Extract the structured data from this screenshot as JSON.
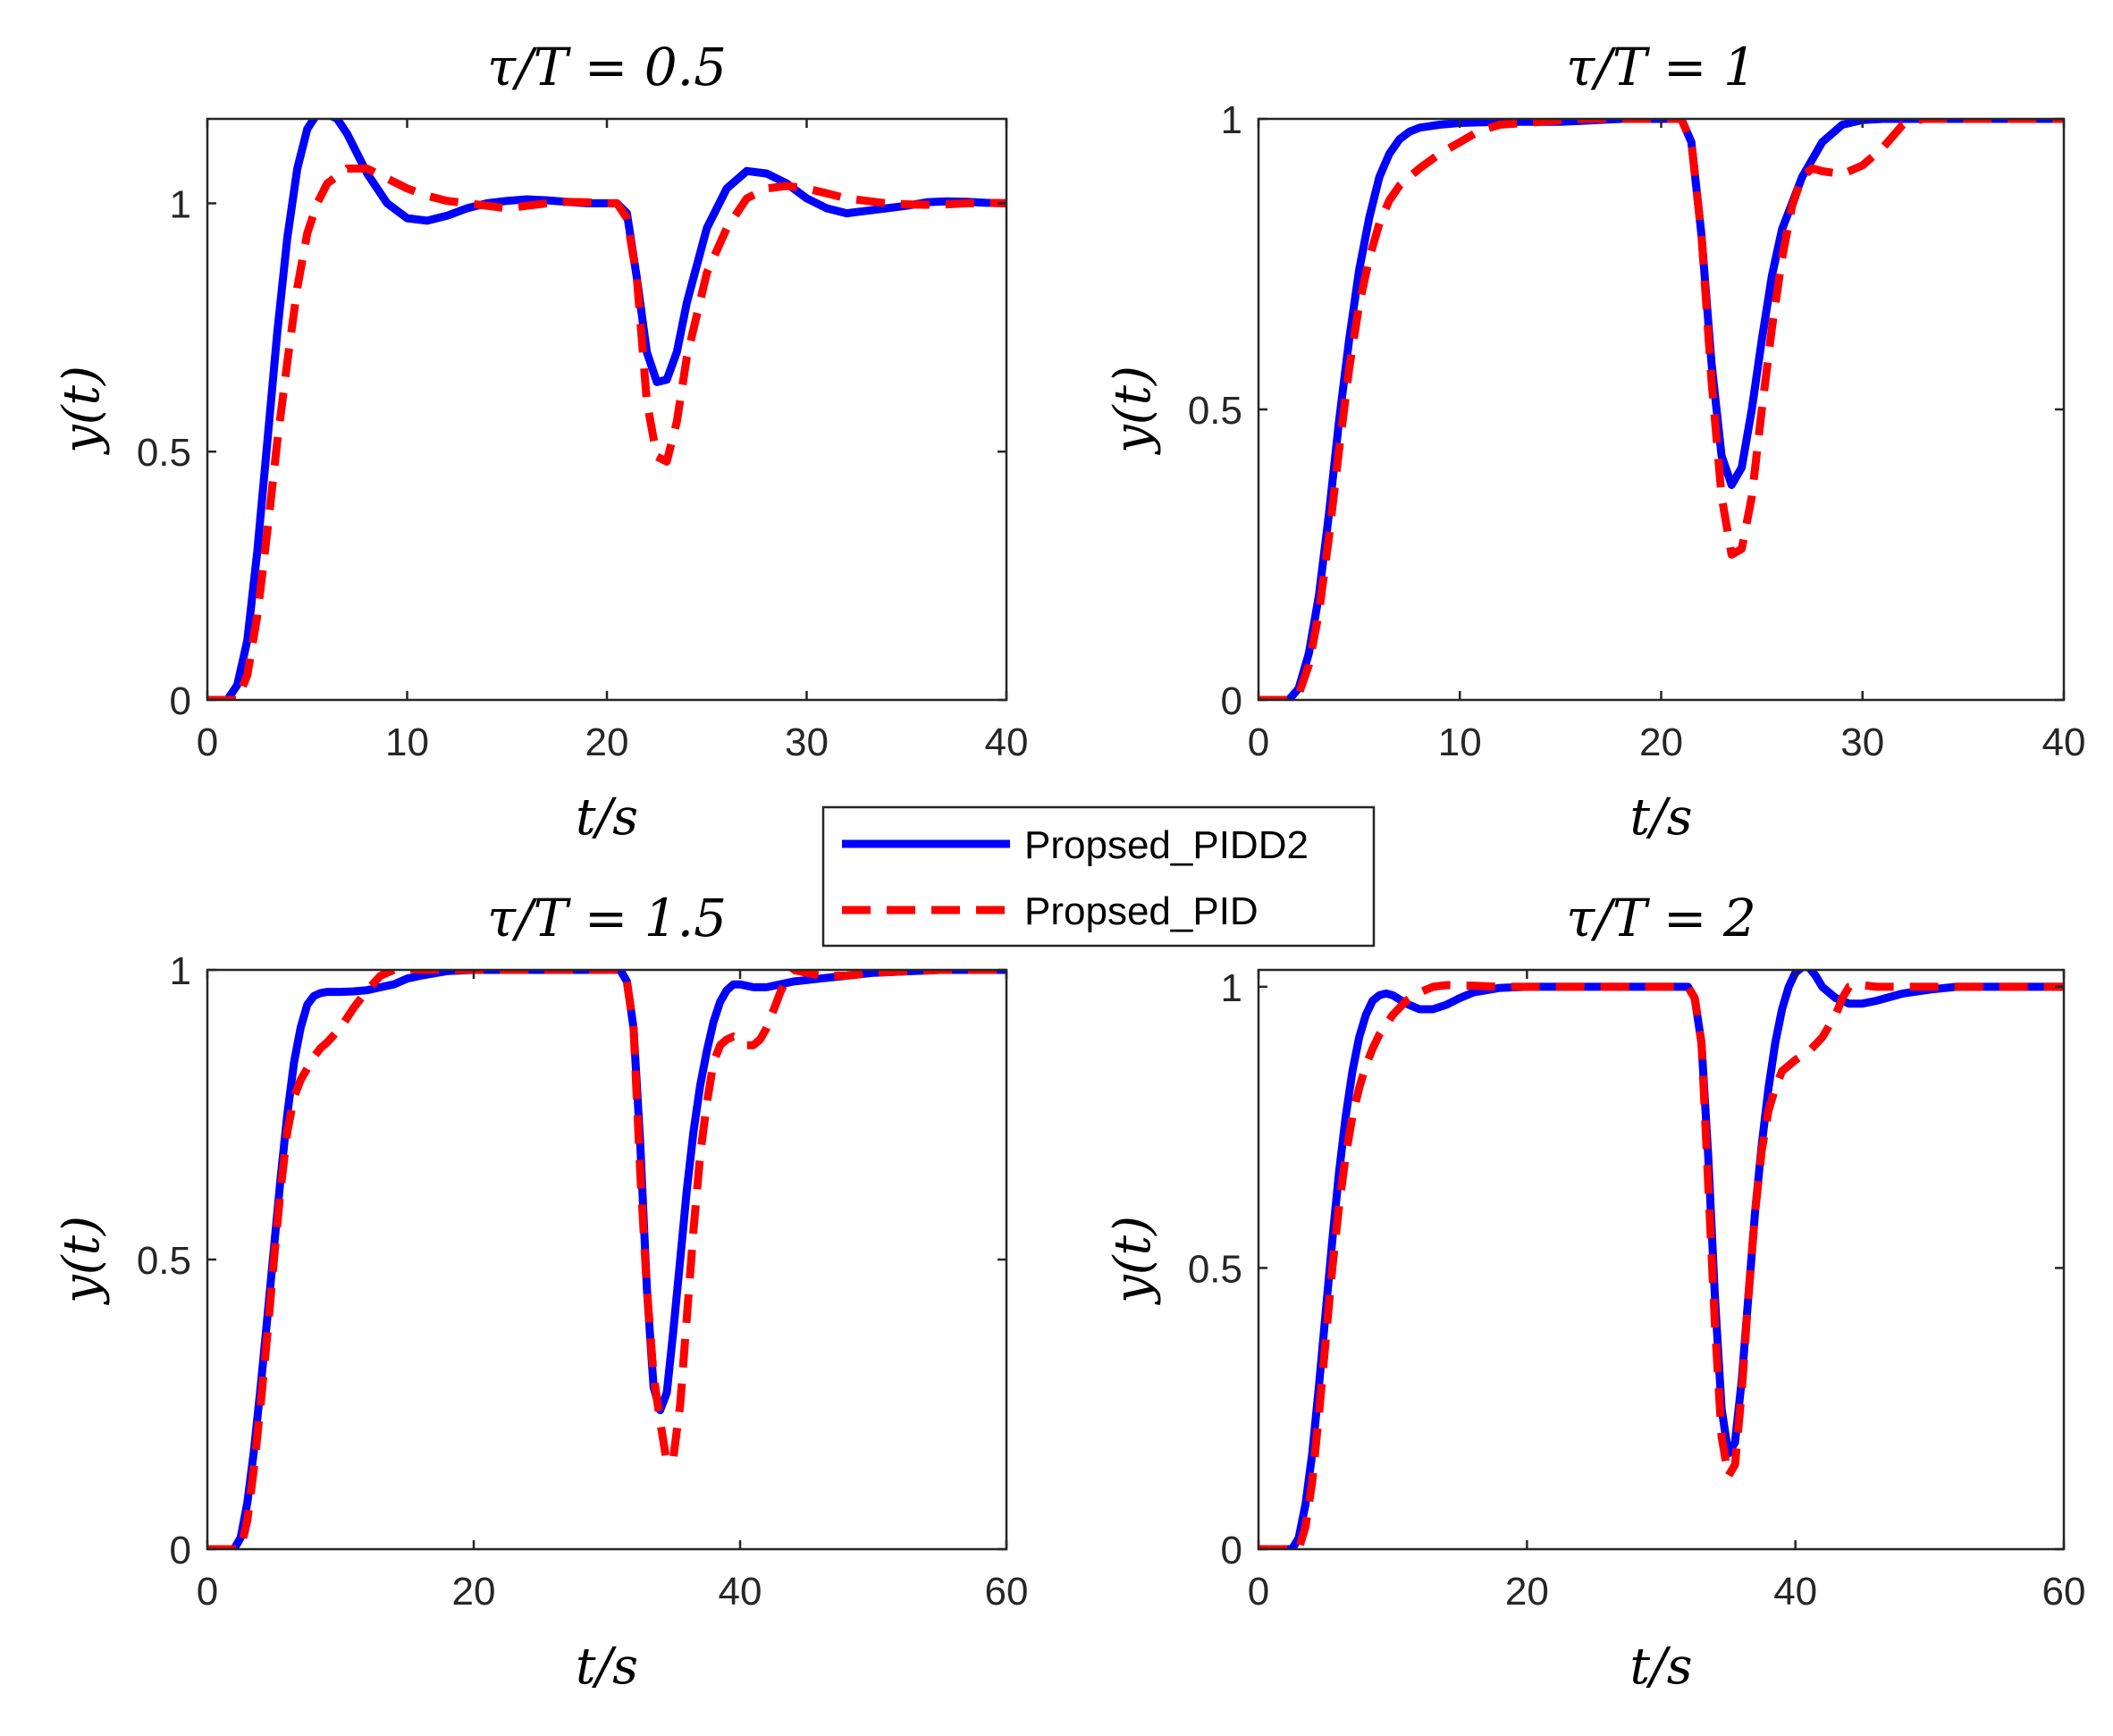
{
  "chart_data": [
    {
      "type": "line",
      "title": "τ/T = 0.5",
      "xlabel": "t/s",
      "ylabel": "y(t)",
      "xlim": [
        0,
        40
      ],
      "ylim": [
        0,
        1.17
      ],
      "xticks": [
        0,
        10,
        20,
        30,
        40
      ],
      "yticks": [
        0,
        0.5,
        1
      ],
      "xtick_labels": [
        "0",
        "10",
        "20",
        "30",
        "40"
      ],
      "ytick_labels": [
        "0",
        "0.5",
        "1"
      ],
      "series": [
        {
          "name": "Propsed_PIDD2",
          "x": [
            0,
            1,
            1.5,
            2,
            2.5,
            3,
            3.5,
            4,
            4.5,
            5,
            5.5,
            6,
            6.5,
            7,
            8,
            9,
            10,
            11,
            12,
            13,
            14,
            15,
            16,
            17,
            18,
            19,
            20,
            20.5,
            21,
            21.5,
            22,
            22.5,
            23,
            23.5,
            24,
            25,
            26,
            27,
            28,
            29,
            30,
            31,
            32,
            33,
            34,
            35,
            36,
            37,
            38,
            39,
            40
          ],
          "values": [
            0,
            0,
            0.03,
            0.12,
            0.3,
            0.52,
            0.74,
            0.93,
            1.07,
            1.15,
            1.18,
            1.18,
            1.17,
            1.14,
            1.06,
            1,
            0.97,
            0.965,
            0.975,
            0.99,
            1,
            1.005,
            1.008,
            1.006,
            1.003,
            1,
            1,
            1,
            0.98,
            0.85,
            0.7,
            0.64,
            0.645,
            0.7,
            0.8,
            0.95,
            1.03,
            1.065,
            1.06,
            1.04,
            1.01,
            0.99,
            0.98,
            0.985,
            0.99,
            0.995,
            1.002,
            1.004,
            1.003,
            1.001,
            1
          ]
        },
        {
          "name": "Propsed_PID",
          "x": [
            0,
            1.5,
            2,
            2.5,
            3,
            3.5,
            4,
            4.5,
            5,
            5.5,
            6,
            7,
            8,
            9,
            10,
            11,
            12,
            13,
            14,
            15,
            16,
            17,
            18,
            19,
            20,
            20.5,
            21,
            21.5,
            22,
            22.5,
            23,
            23.5,
            24,
            25,
            26,
            27,
            28,
            29,
            30,
            31,
            32,
            33,
            34,
            35,
            36,
            37,
            38,
            39,
            40
          ],
          "values": [
            0,
            0,
            0.05,
            0.17,
            0.34,
            0.52,
            0.68,
            0.83,
            0.94,
            1,
            1.04,
            1.07,
            1.07,
            1.05,
            1.03,
            1.015,
            1.005,
            1,
            0.995,
            0.99,
            0.995,
            1,
            1.003,
            1.002,
            1,
            1,
            0.97,
            0.85,
            0.6,
            0.49,
            0.48,
            0.56,
            0.69,
            0.86,
            0.95,
            1.01,
            1.03,
            1.035,
            1.03,
            1.02,
            1.01,
            1.005,
            1,
            0.998,
            0.997,
            0.998,
            1,
            1.001,
            1
          ]
        }
      ]
    },
    {
      "type": "line",
      "title": "τ/T = 1",
      "xlabel": "t/s",
      "ylabel": "y(t)",
      "xlim": [
        0,
        40
      ],
      "ylim": [
        0,
        1
      ],
      "xticks": [
        0,
        10,
        20,
        30,
        40
      ],
      "yticks": [
        0,
        0.5,
        1
      ],
      "xtick_labels": [
        "0",
        "10",
        "20",
        "30",
        "40"
      ],
      "ytick_labels": [
        "0",
        "0.5",
        "1"
      ],
      "series": [
        {
          "name": "Propsed_PIDD2",
          "x": [
            0,
            1.5,
            2,
            2.5,
            3,
            3.5,
            4,
            4.5,
            5,
            5.5,
            6,
            6.5,
            7,
            7.5,
            8,
            9,
            10,
            12,
            15,
            18,
            21,
            21.5,
            22,
            22.5,
            23,
            23.5,
            24,
            24.5,
            25,
            25.5,
            26,
            27,
            28,
            29,
            30,
            31,
            32,
            34,
            36,
            38,
            40
          ],
          "values": [
            0,
            0,
            0.02,
            0.08,
            0.18,
            0.32,
            0.48,
            0.62,
            0.74,
            0.83,
            0.9,
            0.94,
            0.965,
            0.978,
            0.985,
            0.99,
            0.993,
            0.995,
            0.995,
            1,
            1,
            0.96,
            0.8,
            0.58,
            0.42,
            0.37,
            0.4,
            0.5,
            0.62,
            0.73,
            0.81,
            0.9,
            0.96,
            0.99,
            0.998,
            1,
            1,
            1,
            1,
            1,
            1
          ]
        },
        {
          "name": "Propsed_PID",
          "x": [
            0,
            1.5,
            2,
            2.5,
            3,
            3.5,
            4,
            4.5,
            5,
            5.5,
            6,
            6.5,
            7,
            7.5,
            8,
            9,
            10,
            11,
            12,
            14,
            16,
            18,
            21,
            21.5,
            22,
            22.5,
            23,
            23.5,
            24,
            24.5,
            25,
            25.5,
            26,
            26.5,
            27,
            27.5,
            28,
            29,
            30,
            31,
            32,
            33,
            34,
            36,
            38,
            40
          ],
          "values": [
            0,
            0,
            0.01,
            0.06,
            0.15,
            0.28,
            0.43,
            0.57,
            0.68,
            0.76,
            0.82,
            0.86,
            0.885,
            0.9,
            0.915,
            0.94,
            0.96,
            0.98,
            0.99,
            0.995,
            1,
            1,
            1,
            0.96,
            0.8,
            0.55,
            0.35,
            0.25,
            0.26,
            0.35,
            0.5,
            0.64,
            0.76,
            0.85,
            0.9,
            0.915,
            0.91,
            0.905,
            0.92,
            0.95,
            0.99,
            1,
            1,
            1,
            1,
            1
          ]
        }
      ]
    },
    {
      "type": "line",
      "title": "τ/T = 1.5",
      "xlabel": "t/s",
      "ylabel": "y(t)",
      "xlim": [
        0,
        60
      ],
      "ylim": [
        0,
        1
      ],
      "xticks": [
        0,
        20,
        40,
        60
      ],
      "yticks": [
        0,
        0.5,
        1
      ],
      "xtick_labels": [
        "0",
        "20",
        "40",
        "60"
      ],
      "ytick_labels": [
        "0",
        "0.5",
        "1"
      ],
      "series": [
        {
          "name": "Propsed_PIDD2",
          "x": [
            0,
            2,
            2.5,
            3,
            3.5,
            4,
            4.5,
            5,
            5.5,
            6,
            6.5,
            7,
            7.5,
            8,
            8.5,
            9,
            10,
            11,
            12,
            13,
            14,
            15,
            16,
            18,
            20,
            25,
            31,
            31.5,
            32,
            32.5,
            33,
            33.5,
            34,
            34.5,
            35,
            35.5,
            36,
            36.5,
            37,
            37.5,
            38,
            38.5,
            39,
            39.5,
            40,
            41,
            42,
            43,
            44,
            46,
            48,
            50,
            55,
            60
          ],
          "values": [
            0,
            0,
            0.02,
            0.08,
            0.17,
            0.28,
            0.4,
            0.52,
            0.64,
            0.75,
            0.84,
            0.9,
            0.94,
            0.955,
            0.96,
            0.962,
            0.962,
            0.963,
            0.965,
            0.97,
            0.975,
            0.985,
            0.99,
            0.998,
            1,
            1,
            1,
            0.98,
            0.9,
            0.7,
            0.45,
            0.28,
            0.24,
            0.27,
            0.38,
            0.5,
            0.62,
            0.72,
            0.8,
            0.86,
            0.91,
            0.945,
            0.965,
            0.975,
            0.975,
            0.97,
            0.97,
            0.975,
            0.98,
            0.985,
            0.99,
            0.995,
            1,
            1
          ]
        },
        {
          "name": "Propsed_PID",
          "x": [
            0,
            2.5,
            3,
            3.5,
            4,
            4.5,
            5,
            5.5,
            6,
            6.5,
            7,
            7.5,
            8,
            8.5,
            9,
            10,
            11,
            12,
            13,
            14,
            15,
            16,
            18,
            20,
            25,
            31,
            31.5,
            32,
            32.5,
            33,
            33.5,
            34,
            34.5,
            35,
            35.5,
            36,
            36.5,
            37,
            37.5,
            38,
            38.5,
            39,
            39.5,
            40,
            40.5,
            41,
            41.5,
            42,
            42.5,
            43,
            43.5,
            44,
            45,
            46,
            48,
            50,
            55,
            60
          ],
          "values": [
            0,
            0,
            0.05,
            0.14,
            0.25,
            0.37,
            0.5,
            0.62,
            0.72,
            0.78,
            0.81,
            0.83,
            0.85,
            0.865,
            0.875,
            0.9,
            0.935,
            0.965,
            0.99,
            1,
            1.002,
            1,
            1,
            1,
            1,
            1,
            0.98,
            0.9,
            0.65,
            0.45,
            0.3,
            0.22,
            0.15,
            0.16,
            0.25,
            0.4,
            0.55,
            0.68,
            0.77,
            0.84,
            0.87,
            0.88,
            0.885,
            0.88,
            0.87,
            0.87,
            0.88,
            0.9,
            0.93,
            0.96,
            0.985,
            1,
            0.995,
            0.99,
            0.99,
            0.995,
            1,
            1
          ]
        }
      ]
    },
    {
      "type": "line",
      "title": "τ/T = 2",
      "xlabel": "t/s",
      "ylabel": "y(t)",
      "xlim": [
        0,
        60
      ],
      "ylim": [
        0,
        1.03
      ],
      "xticks": [
        0,
        20,
        40,
        60
      ],
      "yticks": [
        0,
        0.5,
        1
      ],
      "xtick_labels": [
        "0",
        "20",
        "40",
        "60"
      ],
      "ytick_labels": [
        "0",
        "0.5",
        "1"
      ],
      "series": [
        {
          "name": "Propsed_PIDD2",
          "x": [
            0,
            2.5,
            3,
            3.5,
            4,
            4.5,
            5,
            5.5,
            6,
            6.5,
            7,
            7.5,
            8,
            8.5,
            9,
            9.5,
            10,
            11,
            12,
            13,
            14,
            15,
            16,
            18,
            20,
            25,
            32,
            32.5,
            33,
            33.5,
            34,
            34.5,
            35,
            35.5,
            36,
            36.5,
            37,
            37.5,
            38,
            38.5,
            39,
            39.5,
            40,
            40.5,
            41,
            41.5,
            42,
            43,
            44,
            45,
            46,
            48,
            50,
            52,
            55,
            60
          ],
          "values": [
            0,
            0,
            0.02,
            0.08,
            0.17,
            0.29,
            0.42,
            0.55,
            0.67,
            0.77,
            0.85,
            0.91,
            0.95,
            0.975,
            0.985,
            0.988,
            0.985,
            0.97,
            0.96,
            0.96,
            0.968,
            0.98,
            0.99,
            0.998,
            1,
            1,
            1,
            0.98,
            0.9,
            0.7,
            0.45,
            0.25,
            0.17,
            0.19,
            0.3,
            0.45,
            0.6,
            0.72,
            0.82,
            0.9,
            0.96,
            1,
            1.025,
            1.035,
            1.035,
            1.02,
            1,
            0.98,
            0.97,
            0.97,
            0.975,
            0.988,
            0.995,
            1,
            1,
            1
          ]
        },
        {
          "name": "Propsed_PID",
          "x": [
            0,
            3,
            3.5,
            4,
            4.5,
            5,
            5.5,
            6,
            6.5,
            7,
            7.5,
            8,
            8.5,
            9,
            10,
            11,
            12,
            13,
            14,
            16,
            18,
            20,
            25,
            32,
            32.5,
            33,
            33.5,
            34,
            34.5,
            35,
            35.5,
            36,
            36.5,
            37,
            37.5,
            38,
            38.5,
            39,
            39.5,
            40,
            41,
            42,
            43,
            43.5,
            44,
            45,
            46,
            48,
            50,
            55,
            60
          ],
          "values": [
            0,
            0,
            0.04,
            0.12,
            0.24,
            0.37,
            0.5,
            0.61,
            0.7,
            0.77,
            0.82,
            0.86,
            0.89,
            0.915,
            0.95,
            0.975,
            0.99,
            1,
            1.003,
            1.002,
            1,
            1,
            1,
            1,
            0.98,
            0.9,
            0.65,
            0.4,
            0.2,
            0.13,
            0.15,
            0.28,
            0.45,
            0.6,
            0.71,
            0.78,
            0.82,
            0.85,
            0.86,
            0.87,
            0.885,
            0.91,
            0.95,
            0.98,
            1,
            1.003,
            1,
            1,
            1,
            1,
            1
          ]
        }
      ]
    }
  ],
  "legend": {
    "items": [
      {
        "label": "Propsed_PIDD2",
        "color": "#0000ff",
        "style": "solid"
      },
      {
        "label": "Propsed_PID",
        "color": "#ff0000",
        "style": "dashed"
      }
    ]
  }
}
